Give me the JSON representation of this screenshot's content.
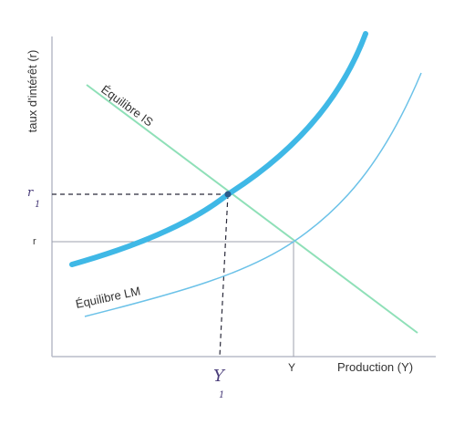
{
  "axes": {
    "y_label": "taux d'intérêt (r)",
    "x_label": "Production (Y)"
  },
  "curves": {
    "is_label": "Équilibre IS",
    "lm_label": "Équilibre LM"
  },
  "ticks": {
    "r": "r",
    "y": "Y"
  },
  "annotations": {
    "r1_letter": "r",
    "r1_sub": "1",
    "y1_letter": "Y",
    "y1_sub": "1"
  },
  "colors": {
    "is_line": "#8fe0b8",
    "lm_shifted": "#3fb8e6",
    "lm_original": "#6cc2e8",
    "axis": "#b8bcc8",
    "dashed": "#2a2a3a",
    "annotation": "#4a3d7a"
  }
}
